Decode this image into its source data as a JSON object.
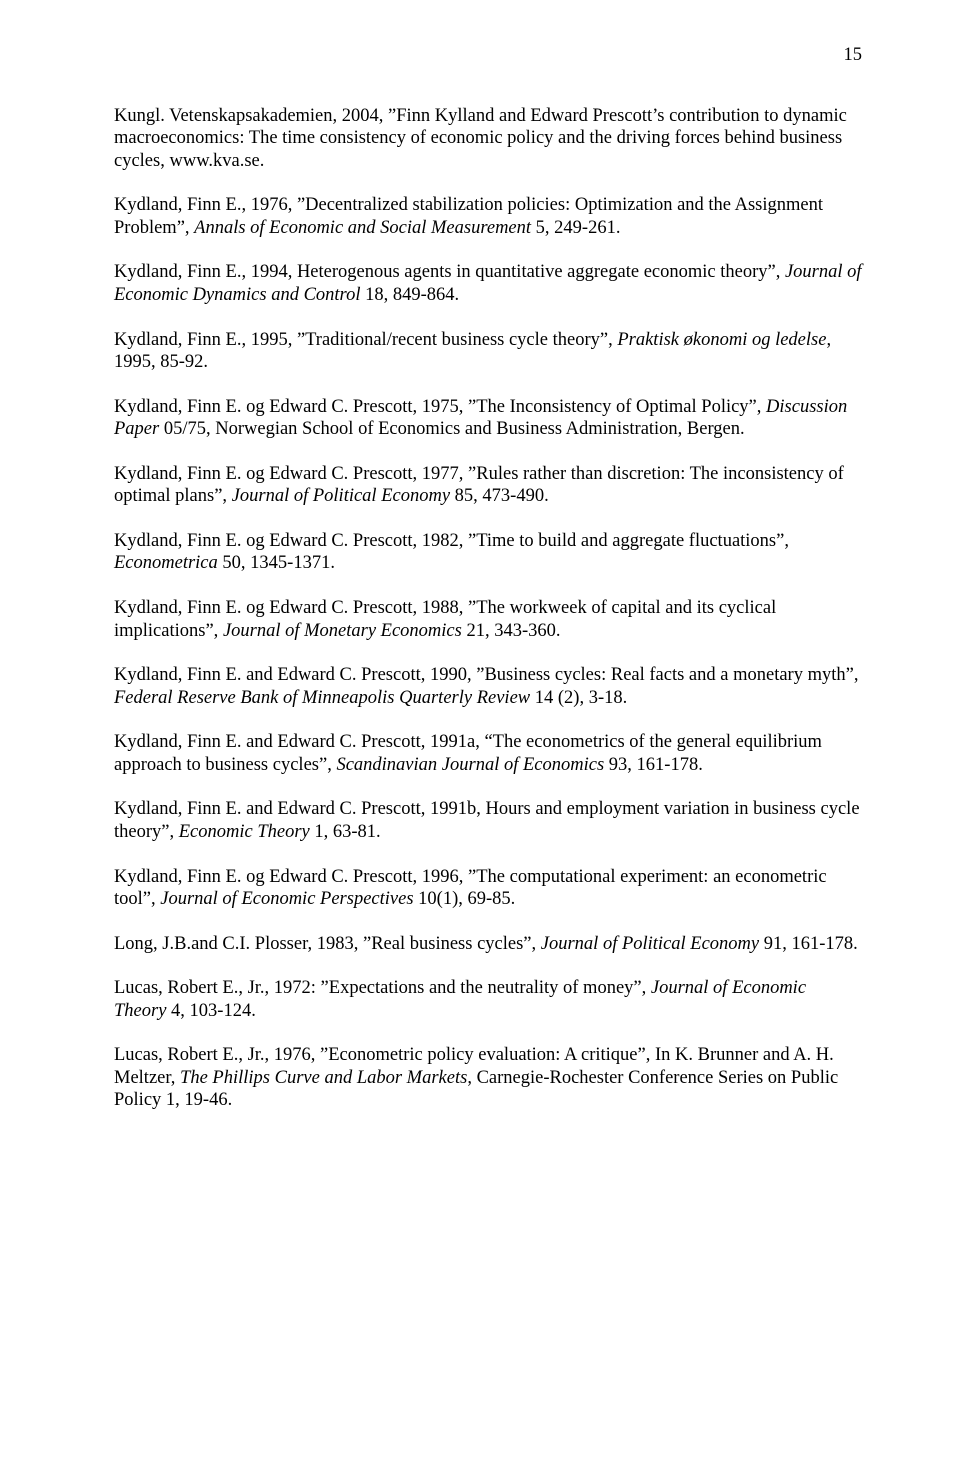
{
  "page_number": "15",
  "refs": [
    {
      "pre": "Kungl. Vetenskapsakademien, 2004, ”Finn Kylland and Edward Prescott’s contribution to dynamic macroeconomics: The time consistency of economic policy and the driving forces behind business cycles, www.kva.se.",
      "italic": "",
      "post": ""
    },
    {
      "pre": "Kydland, Finn E., 1976, ”Decentralized stabilization policies: Optimization and the Assignment Problem”, ",
      "italic": "Annals of Economic and Social Measurement",
      "post": " 5, 249-261."
    },
    {
      "pre": "Kydland, Finn E., 1994, Heterogenous agents in quantitative aggregate economic theory”, ",
      "italic": "Journal of Economic Dynamics and Control",
      "post": " 18, 849-864."
    },
    {
      "pre": "Kydland, Finn E., 1995, ”Traditional/recent business cycle theory”, ",
      "italic": "Praktisk økonomi og ledelse",
      "post": ", 1995, 85-92."
    },
    {
      "pre": "Kydland, Finn E. og Edward C. Prescott, 1975, ”The Inconsistency of Optimal Policy”, ",
      "italic": "Discussion Paper",
      "post": " 05/75, Norwegian School of Economics and Business Administration, Bergen."
    },
    {
      "pre": "Kydland, Finn E. og Edward C. Prescott, 1977, ”Rules rather than discretion: The inconsistency of optimal plans”, ",
      "italic": "Journal of Political Economy",
      "post": " 85, 473-490."
    },
    {
      "pre": "Kydland, Finn E. og Edward C. Prescott, 1982, ”Time to build and aggregate fluctuations”, ",
      "italic": "Econometrica",
      "post": " 50, 1345-1371."
    },
    {
      "pre": "Kydland, Finn E. og Edward C. Prescott, 1988, ”The workweek of capital and its cyclical implications”, ",
      "italic": "Journal of Monetary Economics",
      "post": " 21, 343-360."
    },
    {
      "pre": "Kydland, Finn E. and Edward C. Prescott, 1990, ”Business cycles: Real facts and a monetary myth”, ",
      "italic": "Federal Reserve Bank of Minneapolis Quarterly Review",
      "post": " 14 (2), 3-18."
    },
    {
      "pre": "Kydland, Finn E. and Edward C. Prescott, 1991a, “The econometrics of the general equilibrium approach to business cycles”, ",
      "italic": "Scandinavian Journal of Economics",
      "post": " 93, 161-178."
    },
    {
      "pre": "Kydland, Finn E. and Edward C. Prescott, 1991b, Hours and employment variation in business cycle theory”, ",
      "italic": "Economic Theory",
      "post": " 1, 63-81."
    },
    {
      "pre": "Kydland, Finn E. og Edward C. Prescott, 1996, ”The computational experiment: an econometric tool”, ",
      "italic": "Journal of Economic Perspectives",
      "post": " 10(1), 69-85."
    },
    {
      "pre": "Long, J.B.and C.I. Plosser, 1983, ”Real business cycles”, ",
      "italic": "Journal of Political Economy",
      "post": " 91, 161-178."
    },
    {
      "pre": "Lucas, Robert E., Jr., 1972: ”Expectations and the neutrality of money”, ",
      "italic": "Journal of Economic Theory",
      "post": " 4, 103-124."
    },
    {
      "pre": "Lucas, Robert E., Jr., 1976, ”Econometric policy evaluation: A critique”, In K. Brunner and A. H. Meltzer, ",
      "italic": "The Phillips Curve and Labor Markets",
      "post": ", Carnegie-Rochester Conference Series on Public Policy 1, 19-46."
    }
  ]
}
